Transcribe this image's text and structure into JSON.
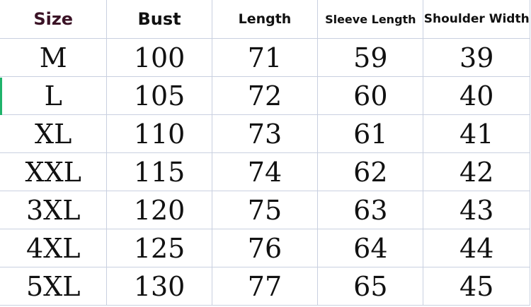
{
  "table": {
    "headers": [
      "Size",
      "Bust",
      "Length",
      "Sleeve Length",
      "Shoulder Width"
    ],
    "rows": [
      [
        "M",
        "100",
        "71",
        "59",
        "39"
      ],
      [
        "L",
        "105",
        "72",
        "60",
        "40"
      ],
      [
        "XL",
        "110",
        "73",
        "61",
        "41"
      ],
      [
        "XXL",
        "115",
        "74",
        "62",
        "42"
      ],
      [
        "3XL",
        "120",
        "75",
        "63",
        "43"
      ],
      [
        "4XL",
        "125",
        "76",
        "64",
        "44"
      ],
      [
        "5XL",
        "130",
        "77",
        "65",
        "45"
      ]
    ]
  },
  "colors": {
    "grid": "#c9d0e0",
    "size_header": "#3b1326",
    "selection_mark": "#1fb36b"
  }
}
